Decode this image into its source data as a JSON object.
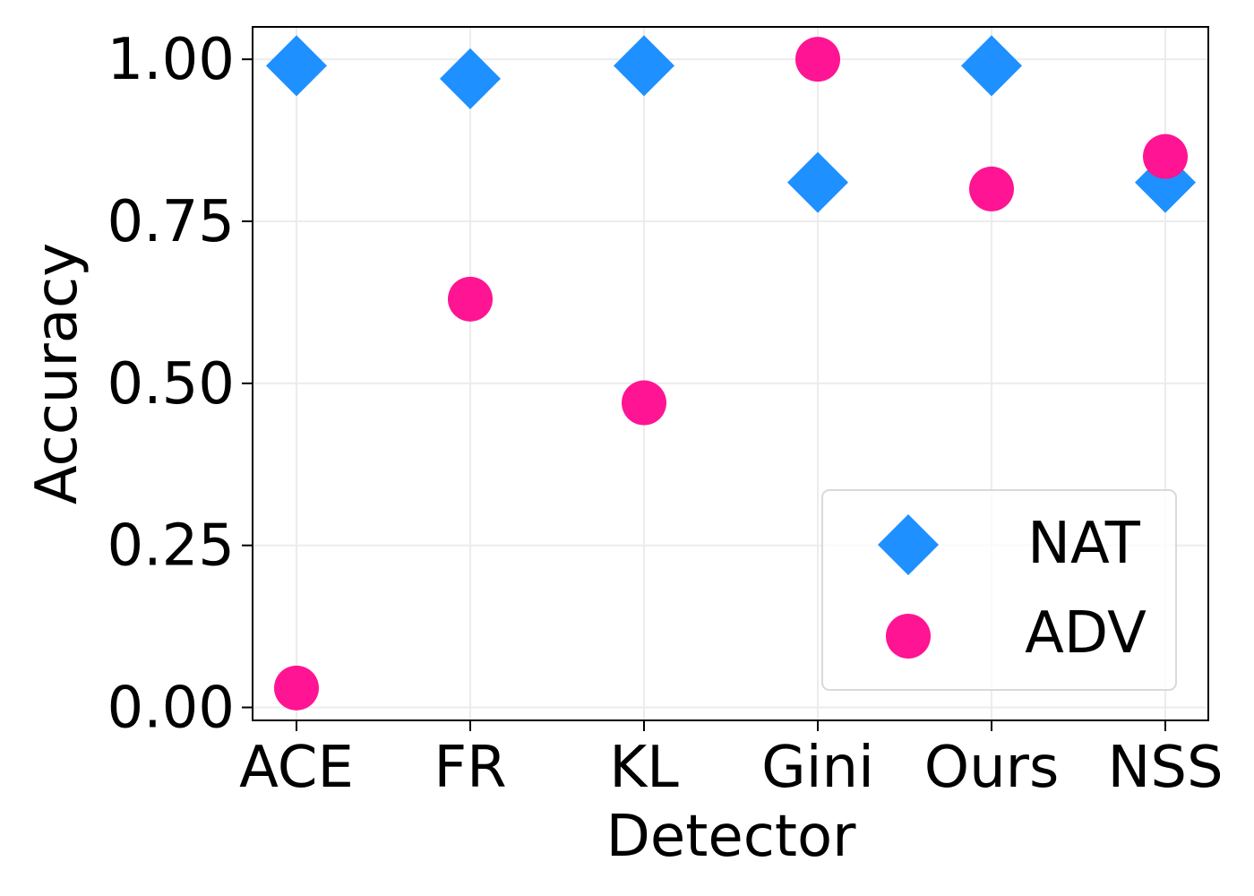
{
  "chart_data": {
    "type": "scatter",
    "title": "",
    "xlabel": "Detector",
    "ylabel": "Accuracy",
    "categories": [
      "ACE",
      "FR",
      "KL",
      "Gini",
      "Ours",
      "NSS"
    ],
    "ylim": [
      -0.02,
      1.05
    ],
    "yticks": [
      "0.00",
      "0.25",
      "0.50",
      "0.75",
      "1.00"
    ],
    "grid": true,
    "legend_position": "lower-right",
    "series": [
      {
        "name": "NAT",
        "marker": "diamond",
        "color": "#1e90ff",
        "values": [
          0.99,
          0.97,
          0.99,
          0.81,
          0.99,
          0.81
        ]
      },
      {
        "name": "ADV",
        "marker": "circle",
        "color": "#ff1493",
        "values": [
          0.03,
          0.63,
          0.47,
          1.0,
          0.8,
          0.85
        ]
      }
    ]
  }
}
